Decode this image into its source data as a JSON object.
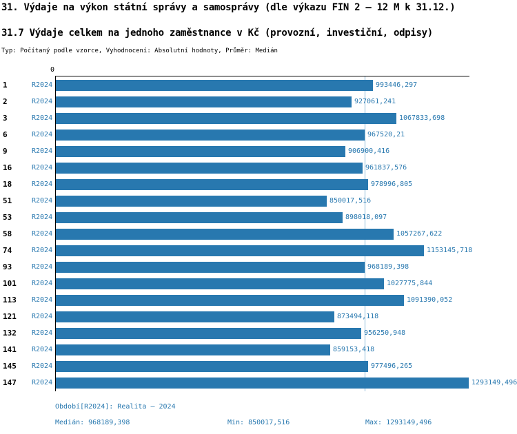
{
  "title": "31. Výdaje na výkon státní správy a samosprávy (dle výkazu FIN 2 – 12 M k 31.12.)",
  "subtitle": "31.7 Výdaje celkem na jednoho zaměstnance v Kč (provozní, investiční, odpisy)",
  "meta": "Typ: Počítaný podle vzorce, Vyhodnocení: Absolutní hodnoty, Průměr: Medián",
  "chart_data": {
    "type": "bar",
    "orientation": "horizontal",
    "title": "31.7 Výdaje celkem na jednoho zaměstnance v Kč (provozní, investiční, odpisy)",
    "axis_zero_label": "0",
    "series_label": "R2024",
    "categories": [
      "1",
      "2",
      "3",
      "6",
      "9",
      "16",
      "18",
      "51",
      "53",
      "58",
      "74",
      "93",
      "101",
      "113",
      "121",
      "132",
      "141",
      "145",
      "147"
    ],
    "values": [
      993446.297,
      927061.241,
      1067833.698,
      967520.21,
      906900.416,
      961837.576,
      978996.805,
      850017.516,
      898018.097,
      1057267.622,
      1153145.718,
      968189.398,
      1027775.844,
      1091390.052,
      873494.118,
      956250.948,
      859153.418,
      977496.265,
      1293149.496
    ],
    "value_labels": [
      "993446,297",
      "927061,241",
      "1067833,698",
      "967520,21",
      "906900,416",
      "961837,576",
      "978996,805",
      "850017,516",
      "898018,097",
      "1057267,622",
      "1153145,718",
      "968189,398",
      "1027775,844",
      "1091390,052",
      "873494,118",
      "956250,948",
      "859153,418",
      "977496,265",
      "1293149,496"
    ],
    "xlim": [
      0,
      1293149.496
    ],
    "median": 968189.398,
    "grid": false,
    "legend": "none",
    "colors": {
      "bar": "#2878af",
      "label_text": "#2878af",
      "median_line": "#8ab9d9",
      "axis": "#000000"
    }
  },
  "footer": {
    "period": "Období[R2024]: Realita – 2024",
    "median": "Medián: 968189,398",
    "min": "Min: 850017,516",
    "max": "Max: 1293149,496"
  }
}
